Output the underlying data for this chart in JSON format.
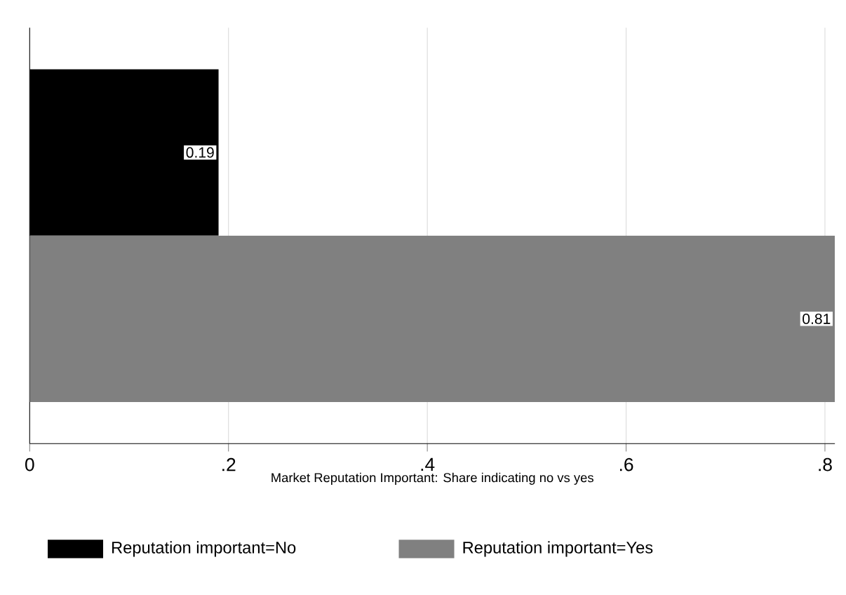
{
  "chart_data": {
    "type": "bar",
    "orientation": "horizontal",
    "xlabel": "Market Reputation Important:  Share indicating no vs yes",
    "categories": [
      null
    ],
    "series": [
      {
        "name": "Reputation important=No",
        "color": "#000000",
        "values": [
          0.19
        ]
      },
      {
        "name": "Reputation important=Yes",
        "color": "#808080",
        "values": [
          0.81
        ]
      }
    ],
    "xlim": [
      0,
      0.81
    ],
    "xticks": [
      0,
      {
        "value": 0.2,
        "label": ".2"
      },
      {
        "value": 0.4,
        "label": ".4"
      },
      {
        "value": 0.6,
        "label": ".6"
      },
      {
        "value": 0.8,
        "label": ".8"
      }
    ],
    "grid": "x",
    "legend": "bottom",
    "data_labels": true
  }
}
